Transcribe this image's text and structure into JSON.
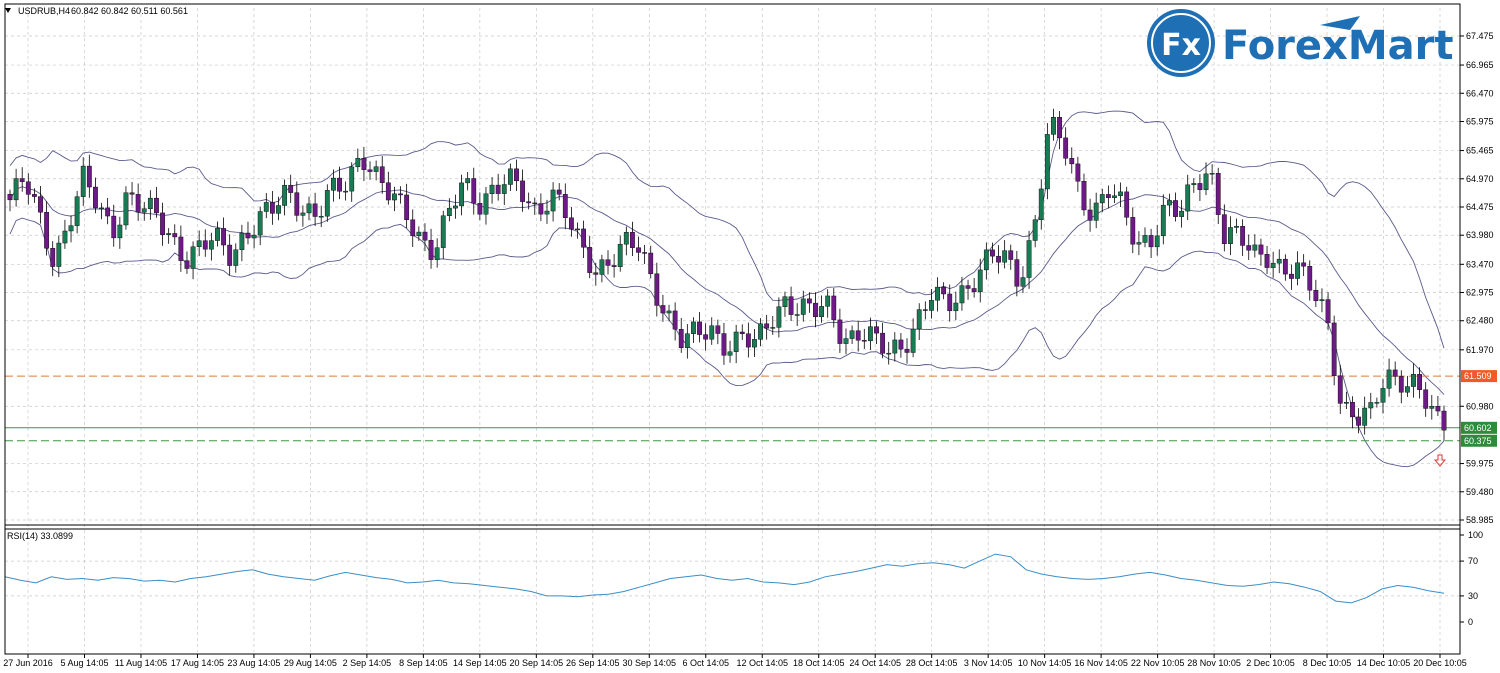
{
  "chart_header": {
    "symbol_timeframe": "USDRUB,H4",
    "ohlc": "60.842 60.842 60.511 60.561"
  },
  "logo": {
    "badge": "Fx",
    "name": "ForexMart"
  },
  "colors": {
    "grid": "#c8c8c8",
    "bull_candle": "#1a7a54",
    "bear_candle": "#6e1a86",
    "bollinger": "#5a5a8c",
    "rsi_line": "#3a8fc8",
    "level_orange": "#e07a3a",
    "level_green": "#3a9a3a",
    "price_tag_orange": "#f05a28",
    "price_tag_green": "#2e8b3a",
    "logo_blue": "#1f6fb5"
  },
  "chart_data": [
    {
      "type": "candlestick",
      "series_name": "USDRUB H4",
      "ylim": [
        58.985,
        67.72
      ],
      "y_ticks": [
        "67.475",
        "66.965",
        "66.470",
        "65.975",
        "65.465",
        "64.970",
        "64.475",
        "63.980",
        "63.470",
        "62.975",
        "62.480",
        "61.970",
        "61.509",
        "60.980",
        "60.602",
        "60.375",
        "59.975",
        "59.480",
        "58.985"
      ],
      "x_ticks": [
        "27 Jun 2016",
        "5 Aug 14:05",
        "11 Aug 14:05",
        "17 Aug 14:05",
        "23 Aug 14:05",
        "29 Aug 14:05",
        "2 Sep 14:05",
        "8 Sep 14:05",
        "14 Sep 14:05",
        "20 Sep 14:05",
        "26 Sep 14:05",
        "30 Sep 14:05",
        "6 Oct 14:05",
        "12 Oct 14:05",
        "18 Oct 14:05",
        "24 Oct 14:05",
        "28 Oct 14:05",
        "3 Nov 14:05",
        "10 Nov 14:05",
        "16 Nov 14:05",
        "22 Nov 10:05",
        "28 Nov 10:05",
        "2 Dec 10:05",
        "8 Dec 10:05",
        "14 Dec 10:05",
        "20 Dec 10:05"
      ],
      "close_path": [
        64.6,
        64.9,
        64.3,
        63.6,
        64.2,
        64.9,
        64.5,
        64.1,
        64.7,
        64.4,
        64.3,
        64.0,
        63.6,
        63.7,
        63.9,
        63.7,
        64.0,
        64.2,
        64.4,
        64.8,
        64.5,
        64.3,
        64.7,
        64.9,
        65.5,
        65.0,
        64.6,
        64.4,
        64.0,
        63.7,
        64.3,
        64.9,
        64.6,
        64.8,
        64.9,
        64.7,
        64.4,
        64.8,
        64.3,
        63.7,
        63.4,
        63.6,
        63.8,
        63.7,
        63.1,
        62.6,
        62.1,
        62.2,
        62.3,
        62.1,
        62.2,
        62.0,
        62.5,
        62.9,
        62.7,
        62.6,
        62.7,
        62.2,
        62.3,
        62.1,
        61.9,
        62.1,
        62.5,
        62.9,
        62.7,
        63.0,
        63.3,
        63.6,
        63.5,
        63.2,
        64.2,
        65.9,
        65.5,
        64.8,
        64.4,
        64.8,
        64.4,
        63.8,
        64.0,
        64.5,
        64.3,
        64.9,
        65.2,
        64.0,
        63.9,
        63.6,
        63.7,
        63.4,
        63.3,
        63.0,
        62.6,
        61.0,
        60.7,
        60.8,
        61.6,
        61.5,
        61.3,
        60.9,
        60.56
      ],
      "bands": "Bollinger Bands (upper / middle / lower)",
      "levels": [
        {
          "label": "61.509",
          "value": 61.509,
          "style": "dashed",
          "color": "orange"
        },
        {
          "label": "60.602",
          "value": 60.602,
          "style": "solid",
          "color": "green"
        },
        {
          "label": "60.375",
          "value": 60.375,
          "style": "dashed",
          "color": "green"
        }
      ]
    },
    {
      "type": "line",
      "title": "RSI(14) 33.0899",
      "ylim": [
        0,
        100
      ],
      "y_ticks": [
        "100",
        "70",
        "30",
        "0"
      ],
      "values": [
        52,
        48,
        45,
        52,
        49,
        50,
        48,
        51,
        50,
        47,
        48,
        46,
        50,
        52,
        55,
        58,
        60,
        55,
        52,
        50,
        48,
        53,
        57,
        54,
        51,
        49,
        45,
        46,
        48,
        45,
        44,
        42,
        40,
        38,
        35,
        30,
        30,
        29,
        31,
        32,
        35,
        40,
        45,
        50,
        52,
        54,
        50,
        48,
        50,
        46,
        45,
        43,
        46,
        52,
        55,
        58,
        62,
        66,
        64,
        67,
        68,
        66,
        62,
        70,
        78,
        75,
        60,
        55,
        52,
        50,
        49,
        50,
        52,
        55,
        57,
        54,
        50,
        48,
        45,
        42,
        41,
        43,
        46,
        44,
        40,
        35,
        24,
        22,
        28,
        38,
        42,
        40,
        36,
        33
      ]
    }
  ]
}
